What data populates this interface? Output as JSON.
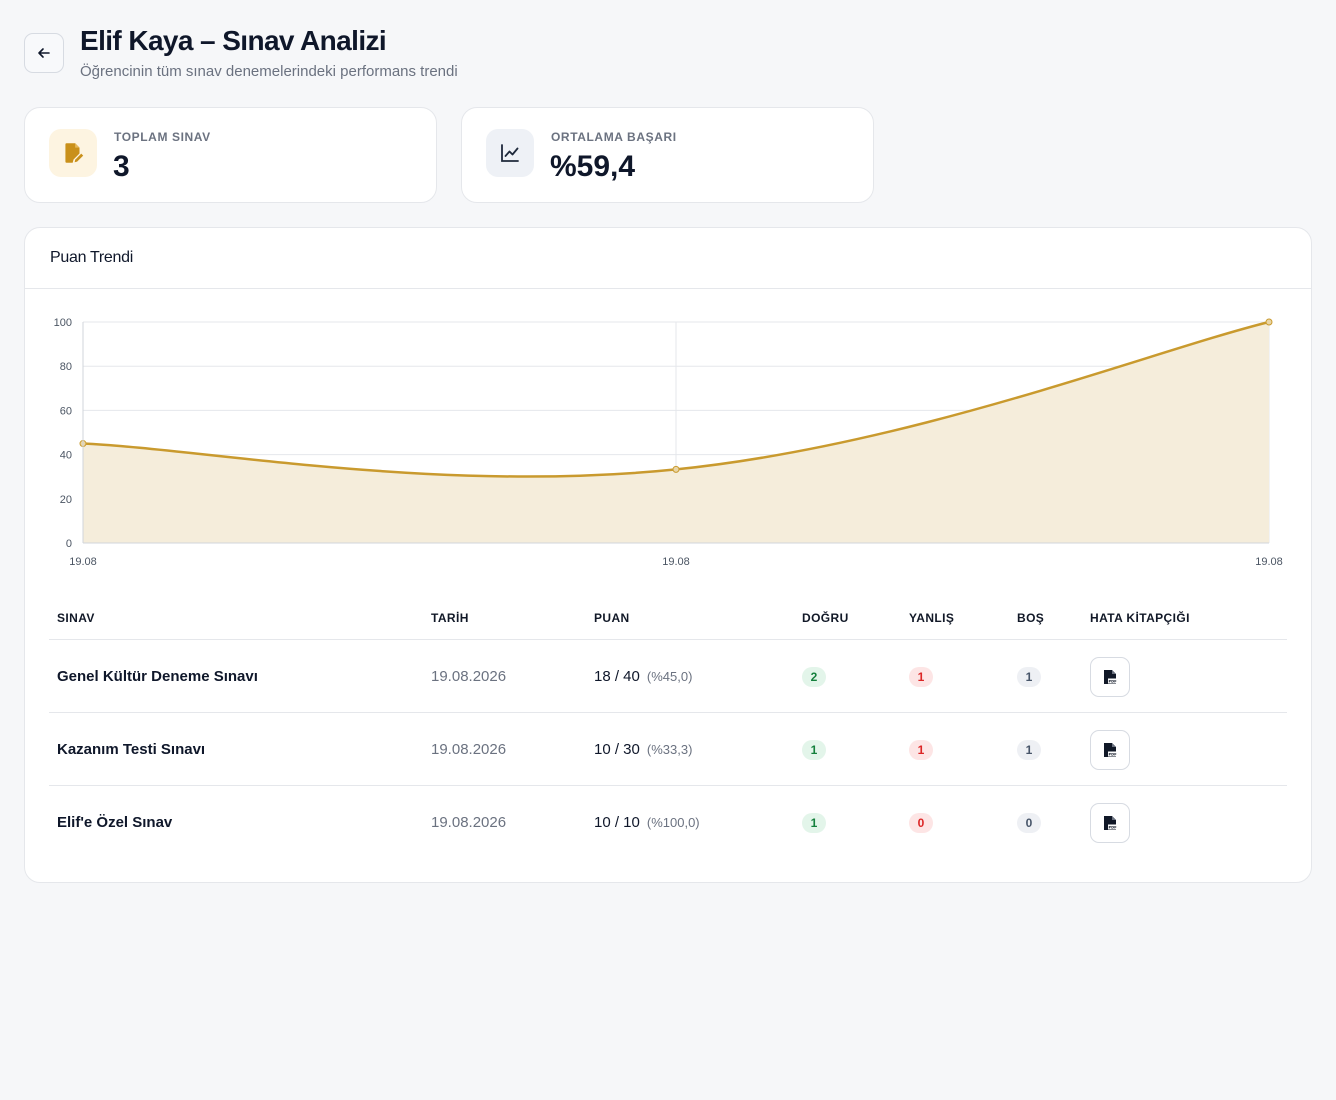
{
  "header": {
    "back_icon": "arrow-left-icon",
    "title": "Elif Kaya – Sınav Analizi",
    "subtitle": "Öğrencinin tüm sınav denemelerindeki performans trendi"
  },
  "stats": [
    {
      "icon": "document-edit-icon",
      "label": "TOPLAM SINAV",
      "value": "3",
      "accent": "#c9901a"
    },
    {
      "icon": "line-chart-icon",
      "label": "ORTALAMA BAŞARI",
      "value": "%59,4",
      "accent": "#1e293b"
    }
  ],
  "chart_panel": {
    "title": "Puan Trendi"
  },
  "chart_data": {
    "type": "area",
    "title": "Puan Trendi",
    "categories": [
      "19.08",
      "19.08",
      "19.08"
    ],
    "values": [
      45.0,
      33.3,
      100.0
    ],
    "ylim": [
      0,
      100
    ],
    "yticks": [
      "100",
      "80",
      "60",
      "40",
      "20",
      "0"
    ],
    "grid": true,
    "line_color": "#c99a2e",
    "fill_color": "#f5eddb"
  },
  "table": {
    "headers": {
      "exam": "SINAV",
      "date": "TARİH",
      "score": "PUAN",
      "correct": "DOĞRU",
      "wrong": "YANLIŞ",
      "blank": "BOŞ",
      "booklet": "HATA KİTAPÇIĞI"
    },
    "rows": [
      {
        "exam": "Genel Kültür Deneme Sınavı",
        "date": "19.08.2026",
        "score": "18 / 40",
        "pct": "(%45,0)",
        "correct": "2",
        "wrong": "1",
        "blank": "1",
        "pdf_icon": "pdf-file-icon"
      },
      {
        "exam": "Kazanım Testi Sınavı",
        "date": "19.08.2026",
        "score": "10 / 30",
        "pct": "(%33,3)",
        "correct": "1",
        "wrong": "1",
        "blank": "1",
        "pdf_icon": "pdf-file-icon"
      },
      {
        "exam": "Elif'e Özel Sınav",
        "date": "19.08.2026",
        "score": "10 / 10",
        "pct": "(%100,0)",
        "correct": "1",
        "wrong": "0",
        "blank": "0",
        "pdf_icon": "pdf-file-icon"
      }
    ]
  }
}
